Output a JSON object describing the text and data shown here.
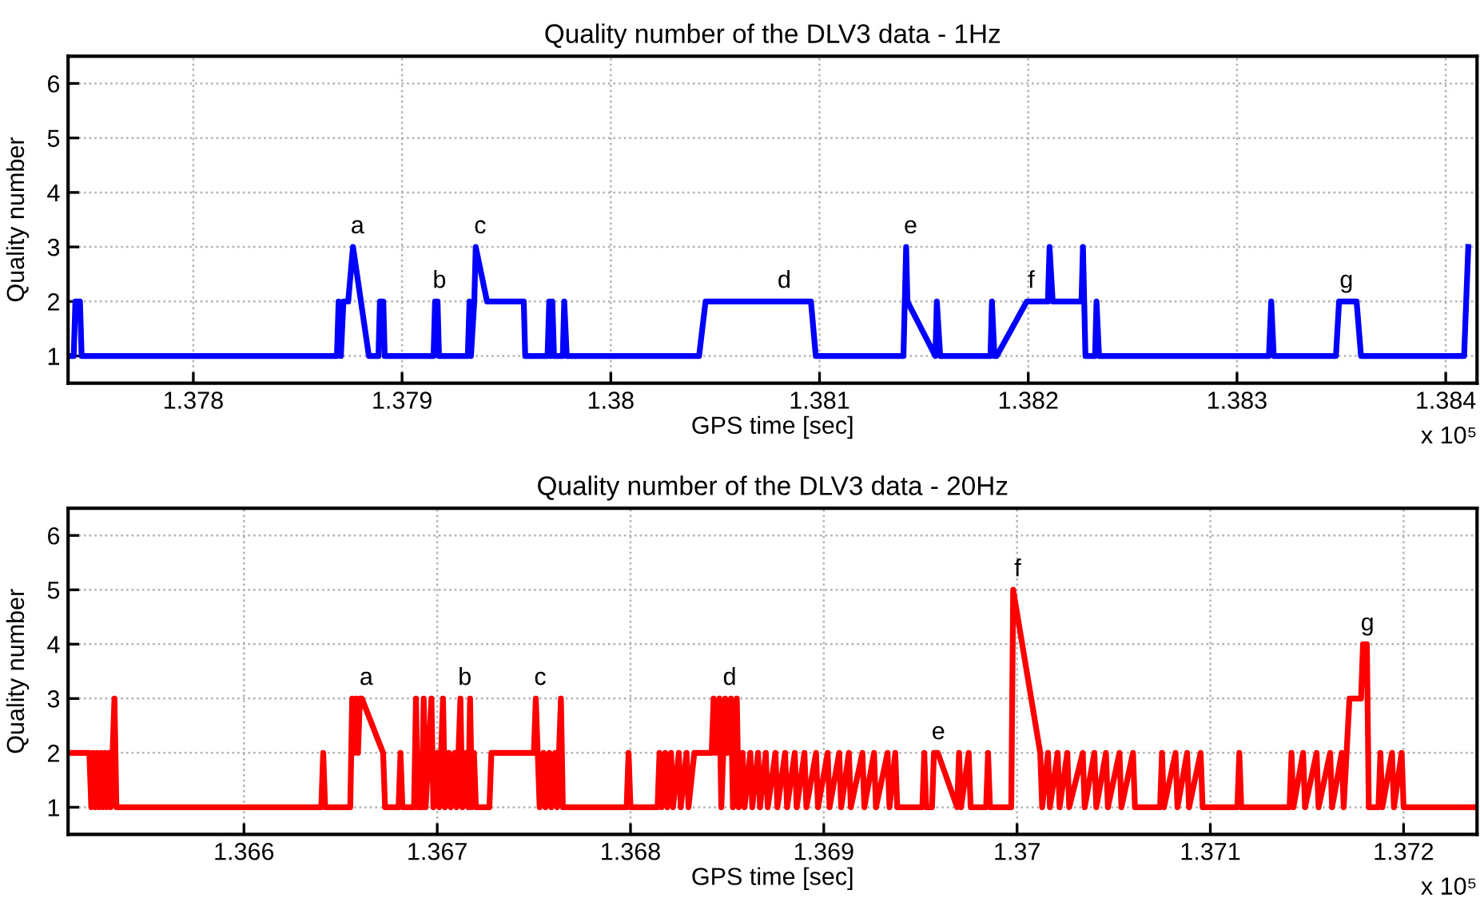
{
  "chart_data": [
    {
      "type": "line",
      "title": "Quality number of the DLV3 data - 1Hz",
      "xlabel": "GPS time [sec]",
      "ylabel": "Quality number",
      "grid": true,
      "legend": false,
      "xlim": [
        1.3774,
        1.38415
      ],
      "ylim": [
        0.5,
        6.5
      ],
      "yticks": [
        1,
        2,
        3,
        4,
        5,
        6
      ],
      "xticks": [
        1.378,
        1.379,
        1.38,
        1.381,
        1.382,
        1.383,
        1.384
      ],
      "annotations": [
        "x 10⁵",
        {
          "text": "a",
          "x": 1.378765,
          "y": 3
        },
        {
          "text": "b",
          "x": 1.379158,
          "y": 2
        },
        {
          "text": "c",
          "x": 1.379353,
          "y": 3
        },
        {
          "text": "d",
          "x": 1.38081,
          "y": 2
        },
        {
          "text": "e",
          "x": 1.381415,
          "y": 3
        },
        {
          "text": "f",
          "x": 1.381993,
          "y": 2
        },
        {
          "text": "g",
          "x": 1.383503,
          "y": 2
        }
      ],
      "series": [
        {
          "color": "#0000ff",
          "x": [
            1.37741,
            1.377427,
            1.377435,
            1.377457,
            1.377465,
            1.378688,
            1.378696,
            1.378707,
            1.378719,
            1.378742,
            1.378765,
            1.378841,
            1.378887,
            1.378894,
            1.37891,
            1.378917,
            1.379151,
            1.379158,
            1.37917,
            1.379177,
            1.379315,
            1.379323,
            1.37933,
            1.379346,
            1.379353,
            1.379407,
            1.379583,
            1.37959,
            1.379697,
            1.379705,
            1.379712,
            1.37972,
            1.379728,
            1.37977,
            1.379777,
            1.379789,
            1.380423,
            1.380454,
            1.380959,
            1.380982,
            1.381402,
            1.381415,
            1.381421,
            1.381555,
            1.381562,
            1.381578,
            1.381819,
            1.381826,
            1.381838,
            1.381849,
            1.381993,
            1.382094,
            1.382102,
            1.382117,
            1.382255,
            1.382262,
            1.382274,
            1.38232,
            1.382327,
            1.382339,
            1.383153,
            1.383164,
            1.383176,
            1.383474,
            1.383489,
            1.383573,
            1.383594,
            1.384088,
            1.384108
          ],
          "values": [
            1,
            1,
            2,
            2,
            1,
            1,
            2,
            1,
            2,
            2,
            3,
            1,
            1,
            2,
            2,
            1,
            1,
            2,
            2,
            1,
            1,
            2,
            1,
            2,
            3,
            2,
            2,
            1,
            1,
            2,
            1,
            2,
            1,
            1,
            2,
            1,
            1,
            2,
            2,
            1,
            1,
            3,
            2,
            1,
            2,
            1,
            1,
            2,
            1,
            1,
            2,
            2,
            3,
            2,
            2,
            3,
            1,
            1,
            2,
            1,
            1,
            2,
            1,
            1,
            2,
            2,
            1,
            1,
            3
          ]
        }
      ]
    },
    {
      "type": "line",
      "title": "Quality number of the DLV3 data - 20Hz",
      "xlabel": "GPS time [sec]",
      "ylabel": "Quality number",
      "grid": true,
      "legend": false,
      "xlim": [
        1.36509,
        1.37238
      ],
      "ylim": [
        0.5,
        6.5
      ],
      "yticks": [
        1,
        2,
        3,
        4,
        5,
        6
      ],
      "xticks": [
        1.366,
        1.367,
        1.368,
        1.369,
        1.37,
        1.371,
        1.372
      ],
      "annotations": [
        "x 10⁵",
        {
          "text": "a",
          "x": 1.36661,
          "y": 3
        },
        {
          "text": "b",
          "x": 1.36712,
          "y": 3
        },
        {
          "text": "c",
          "x": 1.36751,
          "y": 3
        },
        {
          "text": "d",
          "x": 1.36849,
          "y": 3
        },
        {
          "text": "e",
          "x": 1.36957,
          "y": 2
        },
        {
          "text": "f",
          "x": 1.36998,
          "y": 5
        },
        {
          "text": "g",
          "x": 1.37179,
          "y": 4
        }
      ],
      "series": [
        {
          "color": "#ff0000",
          "x": [
            1.36509,
            1.3652,
            1.36521,
            1.36522,
            1.36523,
            1.36524,
            1.36525,
            1.36526,
            1.36527,
            1.36528,
            1.36529,
            1.3653,
            1.36531,
            1.36532,
            1.36533,
            1.36534,
            1.3664,
            1.36641,
            1.36642,
            1.36655,
            1.36656,
            1.36657,
            1.36658,
            1.36659,
            1.3666,
            1.36661,
            1.36672,
            1.36673,
            1.3668,
            1.36681,
            1.36682,
            1.36688,
            1.36689,
            1.3669,
            1.36692,
            1.36693,
            1.36694,
            1.36697,
            1.36698,
            1.367,
            1.36701,
            1.36703,
            1.36704,
            1.36706,
            1.36707,
            1.36709,
            1.3671,
            1.36712,
            1.36713,
            1.36715,
            1.36716,
            1.36717,
            1.36718,
            1.36719,
            1.3672,
            1.36727,
            1.36728,
            1.3675,
            1.36751,
            1.36752,
            1.36753,
            1.36755,
            1.36756,
            1.36758,
            1.36759,
            1.36761,
            1.36762,
            1.36764,
            1.36765,
            1.36798,
            1.36799,
            1.368,
            1.36814,
            1.36815,
            1.36816,
            1.36818,
            1.36819,
            1.36821,
            1.36822,
            1.36825,
            1.36826,
            1.36829,
            1.3683,
            1.36833,
            1.36842,
            1.36843,
            1.36844,
            1.36846,
            1.36847,
            1.36849,
            1.3685,
            1.36852,
            1.36853,
            1.36855,
            1.36856,
            1.36858,
            1.36859,
            1.36862,
            1.36863,
            1.36866,
            1.36867,
            1.3687,
            1.36871,
            1.36875,
            1.36876,
            1.3688,
            1.36881,
            1.36885,
            1.36886,
            1.3689,
            1.36891,
            1.36896,
            1.36897,
            1.36902,
            1.36903,
            1.36908,
            1.36909,
            1.36913,
            1.36914,
            1.3692,
            1.36921,
            1.36926,
            1.36927,
            1.36933,
            1.36934,
            1.36937,
            1.36938,
            1.36951,
            1.36952,
            1.36953,
            1.36956,
            1.36957,
            1.36959,
            1.36969,
            1.3697,
            1.36971,
            1.36975,
            1.36976,
            1.36984,
            1.36985,
            1.36986,
            1.36997,
            1.36998,
            1.37012,
            1.37013,
            1.37016,
            1.37017,
            1.37021,
            1.37022,
            1.37026,
            1.37027,
            1.37034,
            1.37035,
            1.3704,
            1.37041,
            1.37046,
            1.37047,
            1.37053,
            1.37054,
            1.3706,
            1.37061,
            1.37074,
            1.37075,
            1.37076,
            1.37082,
            1.37083,
            1.37088,
            1.37089,
            1.37095,
            1.37096,
            1.37114,
            1.37115,
            1.37116,
            1.37141,
            1.37142,
            1.37143,
            1.37148,
            1.37149,
            1.37155,
            1.37156,
            1.37162,
            1.37163,
            1.37168,
            1.37169,
            1.37172,
            1.37178,
            1.37179,
            1.37181,
            1.37182,
            1.37187,
            1.37188,
            1.37189,
            1.37194,
            1.37195,
            1.37199,
            1.372,
            1.37238
          ],
          "values": [
            2,
            2,
            1,
            2,
            1,
            2,
            1,
            2,
            1,
            2,
            1,
            2,
            1,
            2,
            3,
            1,
            1,
            2,
            1,
            1,
            3,
            2,
            3,
            2,
            3,
            3,
            2,
            1,
            1,
            2,
            1,
            1,
            3,
            1,
            1,
            3,
            1,
            3,
            1,
            2,
            1,
            3,
            1,
            2,
            1,
            2,
            1,
            3,
            1,
            2,
            1,
            3,
            1,
            2,
            1,
            1,
            2,
            2,
            3,
            2,
            1,
            2,
            1,
            2,
            1,
            2,
            1,
            3,
            1,
            1,
            2,
            1,
            1,
            2,
            1,
            2,
            1,
            2,
            1,
            2,
            1,
            2,
            1,
            2,
            2,
            3,
            2,
            3,
            1,
            3,
            2,
            3,
            1,
            3,
            1,
            2,
            1,
            2,
            1,
            2,
            1,
            2,
            1,
            2,
            1,
            2,
            1,
            2,
            1,
            2,
            1,
            2,
            1,
            2,
            1,
            2,
            1,
            2,
            1,
            2,
            1,
            2,
            1,
            2,
            1,
            2,
            1,
            1,
            2,
            1,
            1,
            2,
            2,
            1,
            2,
            1,
            2,
            1,
            1,
            2,
            1,
            1,
            5,
            2,
            1,
            2,
            1,
            2,
            1,
            2,
            1,
            2,
            1,
            2,
            1,
            2,
            1,
            2,
            1,
            2,
            1,
            1,
            2,
            1,
            2,
            1,
            2,
            1,
            2,
            1,
            1,
            2,
            1,
            1,
            2,
            1,
            2,
            1,
            2,
            1,
            2,
            1,
            2,
            1,
            3,
            3,
            4,
            4,
            1,
            1,
            2,
            1,
            2,
            1,
            2,
            1,
            1
          ]
        }
      ]
    }
  ]
}
